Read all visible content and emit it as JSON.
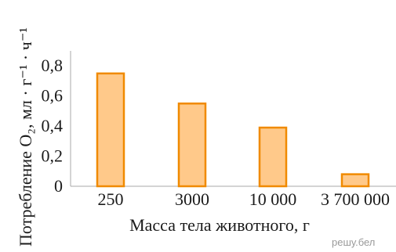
{
  "chart_data": {
    "type": "bar",
    "categories": [
      "250",
      "3000",
      "10 000",
      "3 700 000"
    ],
    "values": [
      0.75,
      0.55,
      0.39,
      0.08
    ],
    "ylim": [
      0,
      0.9
    ],
    "yticks": [
      "0",
      "0,2",
      "0,4",
      "0,6",
      "0,8"
    ],
    "ytick_values": [
      0,
      0.2,
      0.4,
      0.6,
      0.8
    ],
    "xlabel": "Масса тела животного, г",
    "ylabel": "Потребление O₂, мл · г⁻¹ · ч⁻¹",
    "grid": false,
    "colors": {
      "bar_fill": "#ffc98a",
      "bar_stroke": "#f08a00",
      "axis": "#aaaaaa"
    }
  },
  "watermark": "решу.бел"
}
